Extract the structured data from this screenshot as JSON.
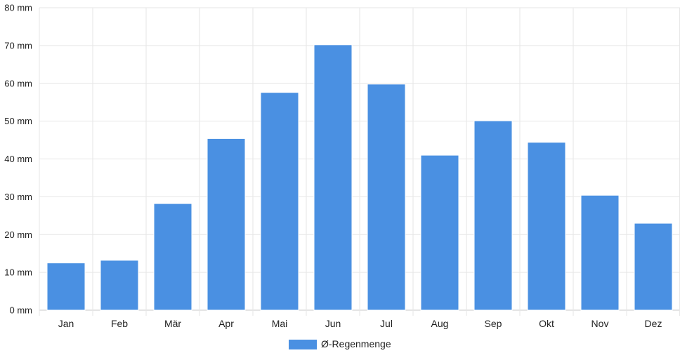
{
  "chart_data": {
    "type": "bar",
    "categories": [
      "Jan",
      "Feb",
      "Mär",
      "Apr",
      "Mai",
      "Jun",
      "Jul",
      "Aug",
      "Sep",
      "Okt",
      "Nov",
      "Dez"
    ],
    "series": [
      {
        "name": "Ø-Regenmenge",
        "color": "#4a90e2",
        "values": [
          12.5,
          13.2,
          28.2,
          45.4,
          57.6,
          70.2,
          59.8,
          41.0,
          50.1,
          44.4,
          30.4,
          23.0
        ]
      }
    ],
    "yticks": [
      "0 mm",
      "10 mm",
      "20 mm",
      "30 mm",
      "40 mm",
      "50 mm",
      "60 mm",
      "70 mm",
      "80 mm"
    ],
    "ylim": [
      0,
      80
    ],
    "grid": true,
    "legend": "bottom-center",
    "title": "",
    "xlabel": "",
    "ylabel": ""
  }
}
